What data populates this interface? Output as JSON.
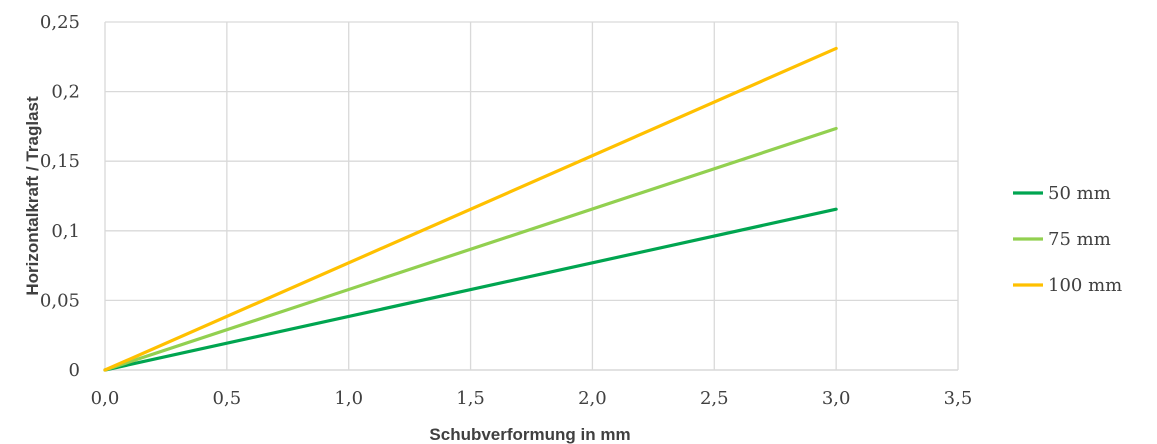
{
  "chart_data": {
    "type": "line",
    "xlabel": "Schubverformung in mm",
    "ylabel": "Horizontalkraft / Traglast",
    "xlim": [
      0,
      3.5
    ],
    "ylim": [
      0,
      0.25
    ],
    "x_ticks": [
      "0,0",
      "0,5",
      "1,0",
      "1,5",
      "2,0",
      "2,5",
      "3,0",
      "3,5"
    ],
    "y_ticks": [
      "0",
      "0,05",
      "0,1",
      "0,15",
      "0,2",
      "0,25"
    ],
    "grid": true,
    "legend_position": "right",
    "series": [
      {
        "name": "50 mm",
        "color": "#00A550",
        "x": [
          0,
          3.0
        ],
        "y": [
          0,
          0.1155
        ]
      },
      {
        "name": "75 mm",
        "color": "#92D050",
        "x": [
          0,
          3.0
        ],
        "y": [
          0,
          0.1735
        ]
      },
      {
        "name": "100 mm",
        "color": "#FFC000",
        "x": [
          0,
          3.0
        ],
        "y": [
          0,
          0.231
        ]
      }
    ]
  }
}
